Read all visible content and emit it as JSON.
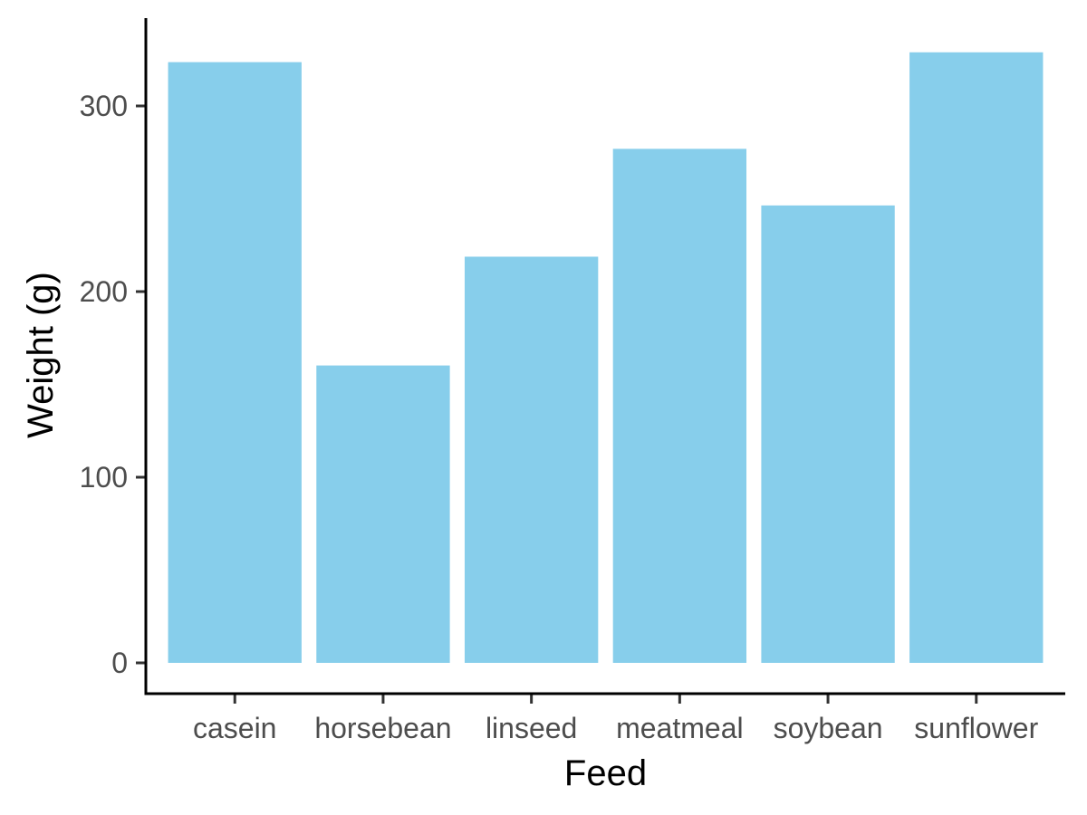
{
  "chart_data": {
    "type": "bar",
    "xlabel": "Feed",
    "ylabel": "Weight (g)",
    "categories": [
      "casein",
      "horsebean",
      "linseed",
      "meatmeal",
      "soybean",
      "sunflower"
    ],
    "values": [
      323.6,
      160.2,
      218.8,
      276.9,
      246.4,
      328.9
    ],
    "ylim": [
      -15,
      345
    ],
    "yticks": [
      0,
      100,
      200,
      300
    ],
    "grid": false,
    "legend": "none",
    "bar_color": "#87CEEB"
  }
}
